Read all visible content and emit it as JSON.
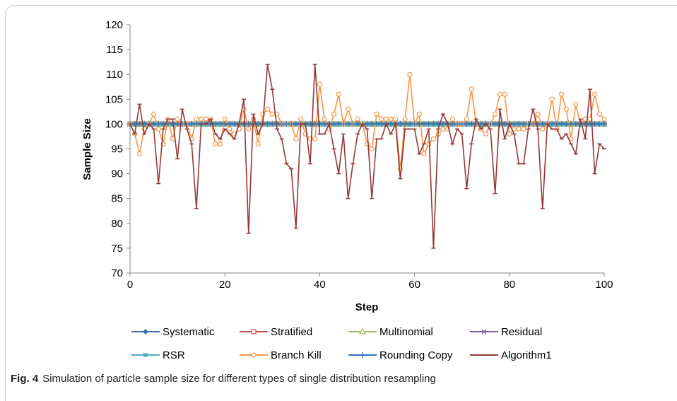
{
  "caption": {
    "label": "Fig. 4",
    "text": "Simulation of particle sample size for different types of single distribution resampling"
  },
  "chart_data": {
    "type": "line",
    "title": "",
    "xlabel": "Step",
    "ylabel": "Sample Size",
    "xlim": [
      0,
      100
    ],
    "ylim": [
      70,
      120
    ],
    "x_ticks": [
      0,
      20,
      40,
      60,
      80,
      100
    ],
    "y_ticks": [
      70,
      75,
      80,
      85,
      90,
      95,
      100,
      105,
      110,
      115,
      120
    ],
    "grid": false,
    "legend_position": "bottom",
    "x": [
      0,
      1,
      2,
      3,
      4,
      5,
      6,
      7,
      8,
      9,
      10,
      11,
      12,
      13,
      14,
      15,
      16,
      17,
      18,
      19,
      20,
      21,
      22,
      23,
      24,
      25,
      26,
      27,
      28,
      29,
      30,
      31,
      32,
      33,
      34,
      35,
      36,
      37,
      38,
      39,
      40,
      41,
      42,
      43,
      44,
      45,
      46,
      47,
      48,
      49,
      50,
      51,
      52,
      53,
      54,
      55,
      56,
      57,
      58,
      59,
      60,
      61,
      62,
      63,
      64,
      65,
      66,
      67,
      68,
      69,
      70,
      71,
      72,
      73,
      74,
      75,
      76,
      77,
      78,
      79,
      80,
      81,
      82,
      83,
      84,
      85,
      86,
      87,
      88,
      89,
      90,
      91,
      92,
      93,
      94,
      95,
      96,
      97,
      98,
      99,
      100
    ],
    "series": [
      {
        "name": "Systematic",
        "color": "#3a6fb0",
        "marker": "diamond",
        "values": "constant:100"
      },
      {
        "name": "Stratified",
        "color": "#c0504d",
        "marker": "square",
        "values": "constant:100"
      },
      {
        "name": "Multinomial",
        "color": "#9bbb59",
        "marker": "triangle",
        "values": "constant:100"
      },
      {
        "name": "Residual",
        "color": "#7b5fa0",
        "marker": "x",
        "values": "constant:100"
      },
      {
        "name": "RSR",
        "color": "#4bacc6",
        "marker": "star",
        "values": "constant:100"
      },
      {
        "name": "Branch Kill",
        "color": "#f79646",
        "marker": "circle",
        "values": [
          100,
          98,
          94,
          99,
          100,
          102,
          99,
          96,
          101,
          97,
          101,
          100,
          100,
          97,
          101,
          101,
          101,
          101,
          96,
          96,
          101,
          99,
          98,
          99,
          103,
          99,
          101,
          96,
          102,
          103,
          102,
          102,
          100,
          100,
          100,
          97,
          101,
          98,
          97,
          97,
          108,
          101,
          99,
          102,
          106,
          100,
          103,
          100,
          101,
          100,
          96,
          95,
          102,
          101,
          101,
          101,
          101,
          91,
          101,
          110,
          100,
          102,
          94,
          96,
          97,
          98,
          99,
          99,
          101,
          100,
          100,
          101,
          107,
          100,
          99,
          98,
          100,
          102,
          106,
          106,
          98,
          99,
          99,
          99,
          100,
          100,
          102,
          99,
          100,
          105,
          99,
          106,
          103,
          97,
          104,
          100,
          101,
          101,
          106,
          102,
          101
        ]
      },
      {
        "name": "Rounding Copy",
        "color": "#2e75b6",
        "marker": "plus",
        "values": "constant:100"
      },
      {
        "name": "Algorithm1",
        "color": "#953735",
        "marker": "dash",
        "values": [
          100,
          98,
          104,
          98,
          100,
          99,
          88,
          99,
          101,
          101,
          93,
          103,
          99,
          96,
          83,
          100,
          100,
          101,
          98,
          97,
          99,
          98,
          97,
          100,
          105,
          78,
          102,
          98,
          100,
          112,
          107,
          99,
          97,
          92,
          91,
          79,
          100,
          100,
          92,
          112,
          98,
          98,
          100,
          95,
          90,
          98,
          85,
          92,
          98,
          100,
          99,
          85,
          97,
          97,
          100,
          98,
          100,
          89,
          99,
          99,
          99,
          94,
          96,
          99,
          75,
          99,
          102,
          100,
          96,
          99,
          98,
          87,
          96,
          101,
          99,
          100,
          99,
          86,
          103,
          97,
          100,
          98,
          92,
          92,
          99,
          103,
          99,
          83,
          100,
          99,
          99,
          97,
          98,
          96,
          94,
          101,
          97,
          107,
          90,
          96,
          95
        ]
      }
    ]
  }
}
